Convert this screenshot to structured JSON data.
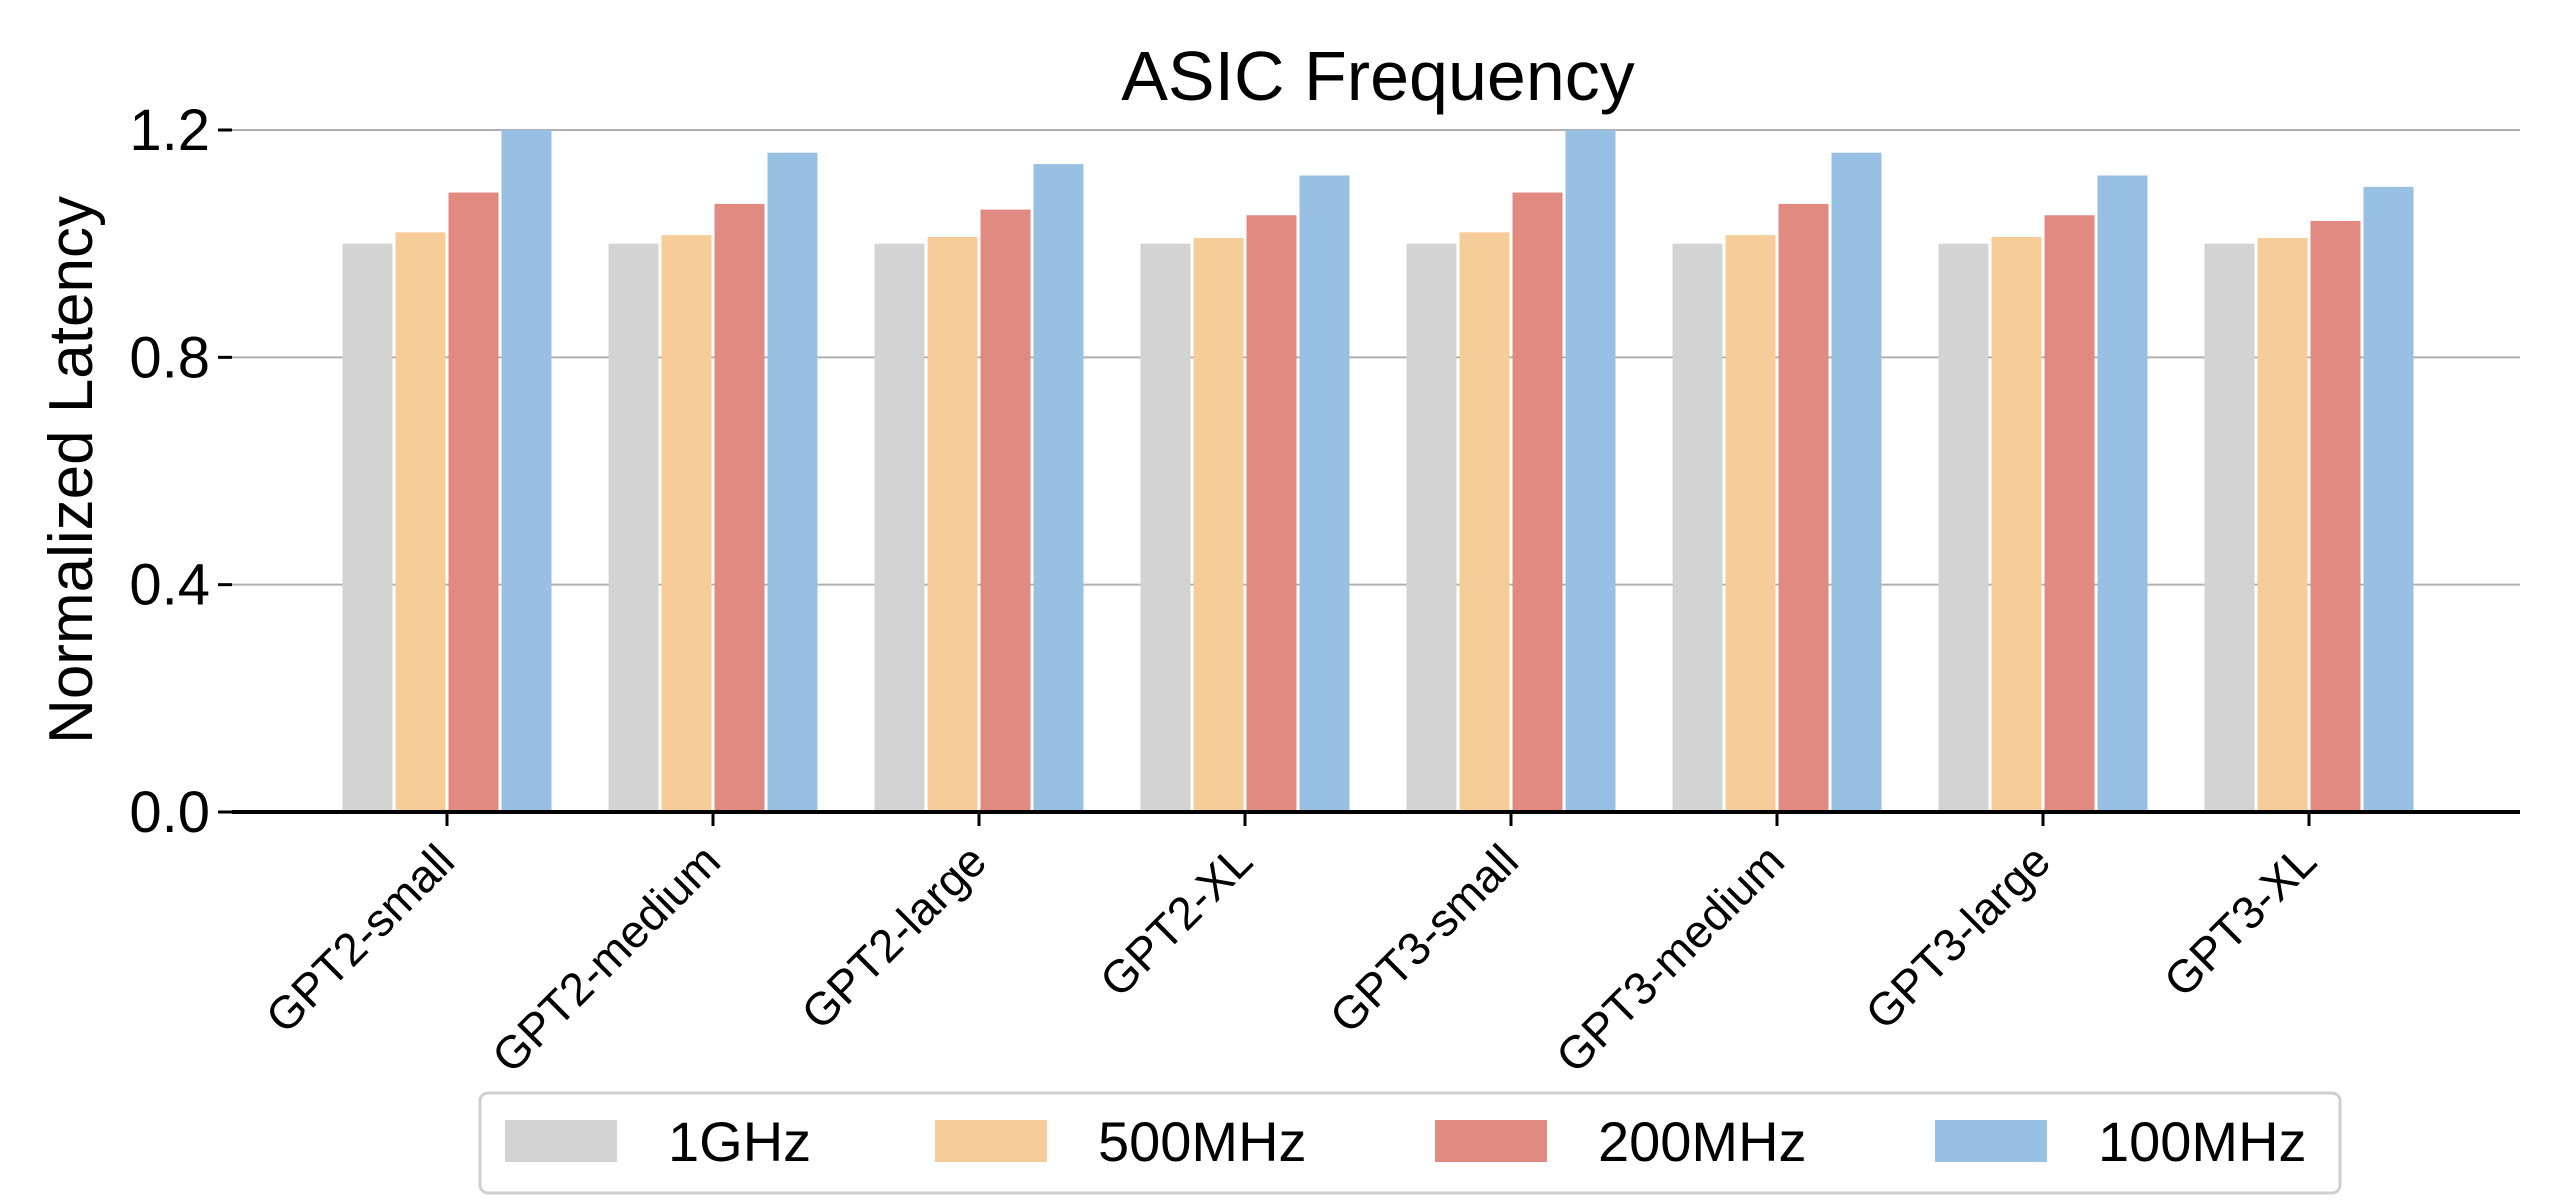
{
  "chart_data": {
    "type": "bar",
    "title": "ASIC Frequency",
    "xlabel": "",
    "ylabel": "Normalized Latency",
    "ylim": [
      0,
      1.2
    ],
    "yticks": [
      "0.0",
      "0.4",
      "0.8",
      "1.2"
    ],
    "ytick_values": [
      0,
      0.4,
      0.8,
      1.2
    ],
    "grid": "horizontal",
    "legend_position": "bottom",
    "categories": [
      "GPT2-small",
      "GPT2-medium",
      "GPT2-large",
      "GPT2-XL",
      "GPT3-small",
      "GPT3-medium",
      "GPT3-large",
      "GPT3-XL"
    ],
    "series": [
      {
        "name": "1GHz",
        "color": "#d3d3d3",
        "values": [
          1.0,
          1.0,
          1.0,
          1.0,
          1.0,
          1.0,
          1.0,
          1.0
        ]
      },
      {
        "name": "500MHz",
        "color": "#f6cd98",
        "values": [
          1.02,
          1.015,
          1.012,
          1.01,
          1.02,
          1.015,
          1.012,
          1.01
        ]
      },
      {
        "name": "200MHz",
        "color": "#e08a82",
        "values": [
          1.09,
          1.07,
          1.06,
          1.05,
          1.09,
          1.07,
          1.05,
          1.04
        ]
      },
      {
        "name": "100MHz",
        "color": "#97c0e3",
        "values": [
          1.2,
          1.16,
          1.14,
          1.12,
          1.2,
          1.16,
          1.12,
          1.1
        ]
      }
    ]
  }
}
